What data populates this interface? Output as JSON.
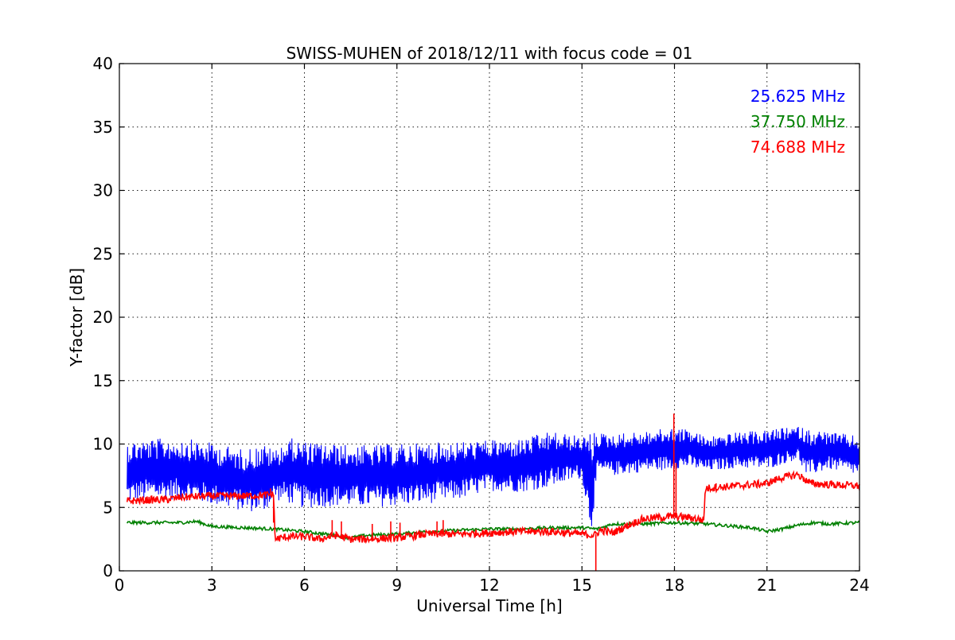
{
  "chart_data": {
    "type": "line",
    "title": "SWISS-MUHEN of 2018/12/11 with focus code = 01",
    "xlabel": "Universal Time [h]",
    "ylabel": "Y-factor [dB]",
    "xlim": [
      0,
      24
    ],
    "ylim": [
      0,
      40
    ],
    "xticks": [
      0,
      3,
      6,
      9,
      12,
      15,
      18,
      21,
      24
    ],
    "yticks": [
      0,
      5,
      10,
      15,
      20,
      25,
      30,
      35,
      40
    ],
    "grid": true,
    "legend_position": "top-right",
    "series": [
      {
        "name": "25.625 MHz",
        "color": "#0000ff",
        "band": {
          "x": [
            0.25,
            1.0,
            2.0,
            3.0,
            4.0,
            4.7,
            5.0,
            5.5,
            6.0,
            7.0,
            8.0,
            9.0,
            10.0,
            11.0,
            12.0,
            13.0,
            14.0,
            15.0,
            15.3,
            15.5,
            16.0,
            17.0,
            18.0,
            18.5,
            19.0,
            20.0,
            21.0,
            22.0,
            22.3,
            23.0,
            24.0
          ],
          "lower": [
            5.3,
            5.6,
            5.6,
            5.2,
            4.7,
            4.6,
            5.6,
            5.3,
            4.9,
            5.1,
            5.0,
            5.1,
            5.3,
            5.6,
            6.3,
            6.2,
            6.6,
            7.3,
            3.0,
            7.6,
            7.5,
            7.8,
            8.0,
            8.1,
            7.8,
            8.1,
            8.0,
            8.8,
            7.4,
            8.0,
            7.5
          ],
          "upper": [
            10.3,
            10.4,
            10.5,
            10.1,
            9.6,
            10.0,
            9.5,
            10.5,
            10.2,
            10.0,
            9.9,
            10.0,
            10.1,
            10.2,
            10.3,
            10.4,
            11.0,
            10.6,
            11.0,
            10.9,
            10.8,
            11.0,
            11.3,
            11.2,
            10.6,
            10.9,
            11.1,
            11.4,
            11.2,
            11.0,
            10.6
          ]
        }
      },
      {
        "name": "37.750 MHz",
        "color": "#008000",
        "x": [
          0.25,
          1.0,
          2.0,
          2.5,
          3.0,
          4.0,
          5.0,
          5.5,
          6.0,
          7.0,
          7.5,
          8.0,
          9.0,
          10.0,
          11.0,
          12.0,
          13.0,
          14.0,
          15.0,
          15.5,
          16.0,
          17.0,
          18.0,
          19.0,
          20.0,
          20.5,
          21.0,
          21.5,
          22.0,
          22.5,
          23.0,
          24.0
        ],
        "y": [
          3.8,
          3.8,
          3.8,
          3.9,
          3.5,
          3.4,
          3.3,
          3.2,
          3.1,
          2.8,
          2.6,
          2.8,
          2.9,
          3.1,
          3.2,
          3.3,
          3.3,
          3.4,
          3.4,
          3.3,
          3.7,
          3.7,
          3.8,
          3.7,
          3.5,
          3.4,
          3.1,
          3.3,
          3.6,
          3.8,
          3.7,
          3.8
        ]
      },
      {
        "name": "74.688 MHz",
        "color": "#ff0000",
        "x": [
          0.25,
          1.0,
          1.5,
          2.0,
          3.0,
          4.0,
          5.0,
          5.05,
          5.5,
          6.0,
          6.5,
          7.0,
          7.5,
          8.0,
          9.0,
          10.0,
          11.0,
          12.0,
          13.0,
          14.0,
          15.0,
          15.4,
          15.6,
          16.0,
          16.5,
          17.0,
          17.5,
          18.0,
          18.5,
          18.95,
          19.0,
          20.0,
          21.0,
          21.4,
          22.0,
          22.4,
          23.0,
          24.0
        ],
        "y": [
          5.5,
          5.6,
          5.6,
          5.8,
          5.9,
          5.9,
          6.0,
          2.5,
          2.7,
          2.7,
          2.5,
          2.8,
          2.5,
          2.5,
          2.6,
          2.9,
          2.9,
          3.0,
          3.1,
          3.1,
          2.9,
          2.8,
          3.2,
          3.0,
          3.6,
          4.1,
          4.2,
          4.3,
          4.2,
          4.0,
          6.5,
          6.7,
          6.9,
          7.3,
          7.6,
          6.9,
          6.8,
          6.7
        ],
        "spikes": [
          [
            4.9,
            6.5
          ],
          [
            5.0,
            3.8
          ],
          [
            6.9,
            4.0
          ],
          [
            7.2,
            3.9
          ],
          [
            8.2,
            3.7
          ],
          [
            8.8,
            3.9
          ],
          [
            9.1,
            3.8
          ],
          [
            10.3,
            3.9
          ],
          [
            10.5,
            4.0
          ],
          [
            15.45,
            0.0
          ],
          [
            17.98,
            12.4
          ],
          [
            18.05,
            8.5
          ],
          [
            19.35,
            6.9
          ]
        ]
      }
    ]
  }
}
